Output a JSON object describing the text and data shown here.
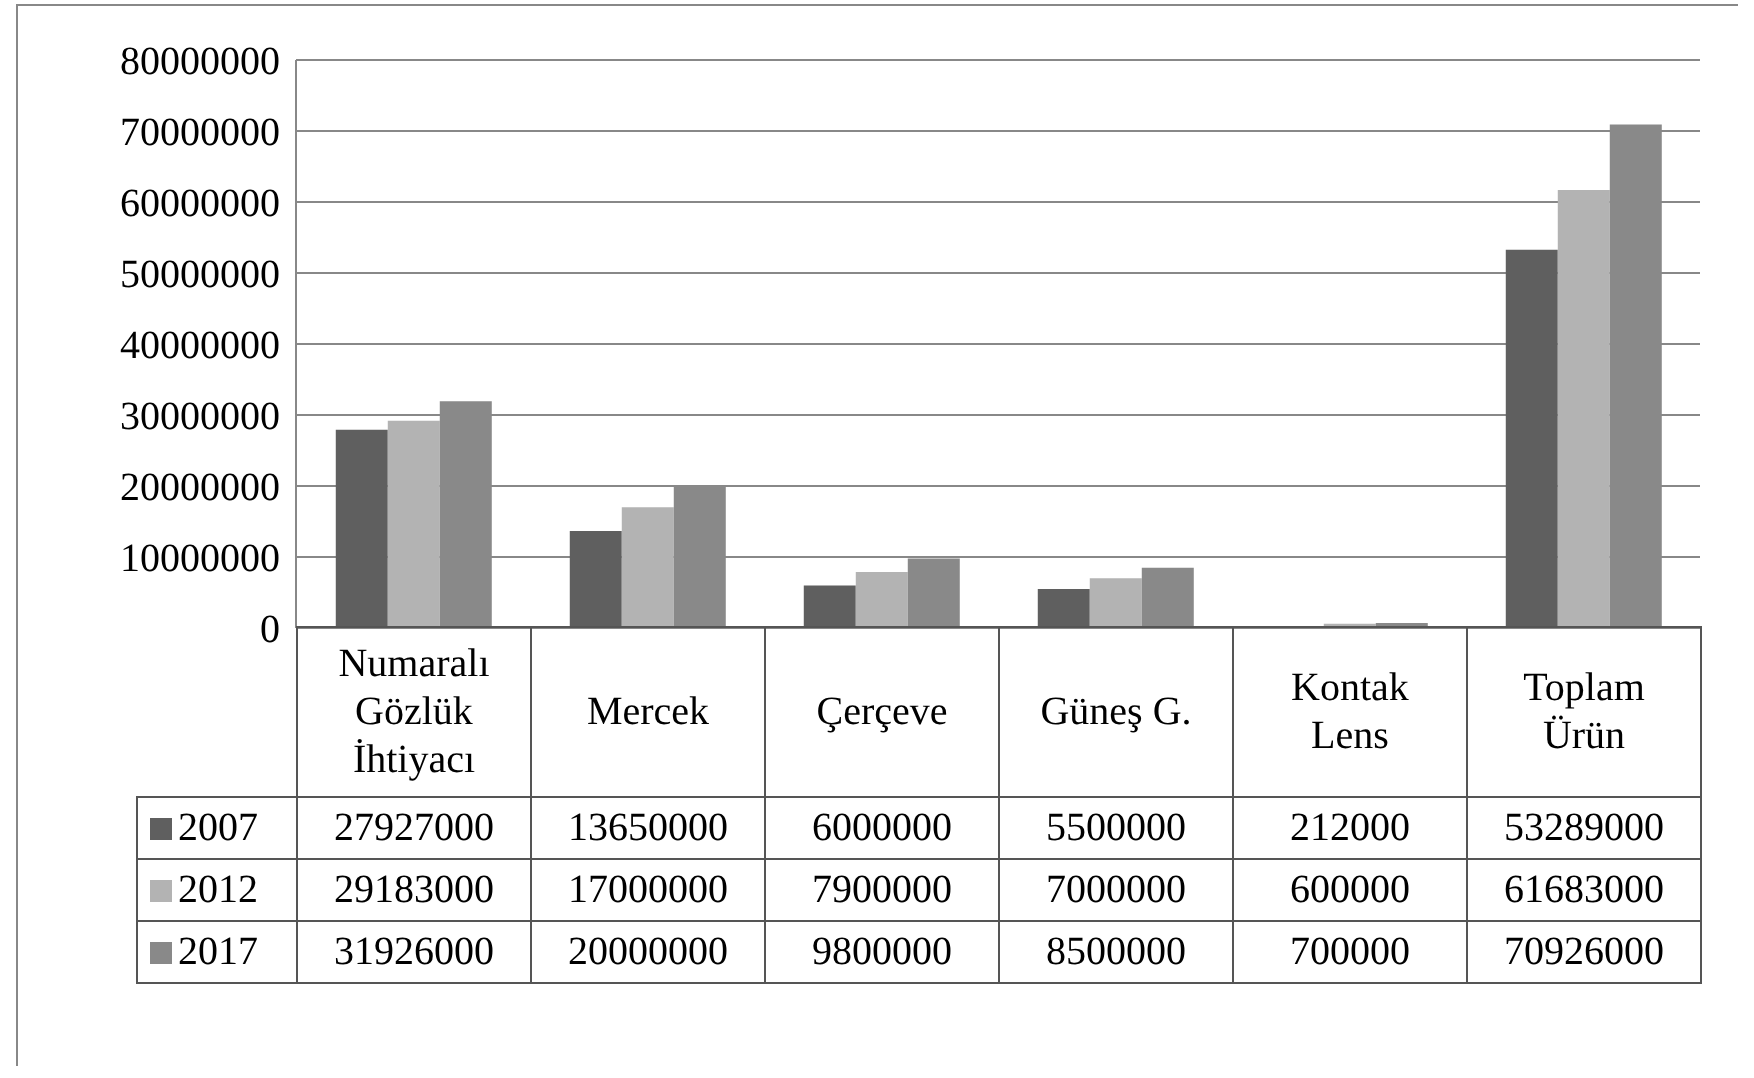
{
  "chart_data": {
    "type": "bar",
    "categories": [
      "Numaralı Gözlük İhtiyacı",
      "Mercek",
      "Çerçeve",
      "Güneş G.",
      "Kontak Lens",
      "Toplam Ürün"
    ],
    "series": [
      {
        "name": "2007",
        "color": "#5f5f5f",
        "values": [
          27927000,
          13650000,
          6000000,
          5500000,
          212000,
          53289000
        ]
      },
      {
        "name": "2012",
        "color": "#b3b3b3",
        "values": [
          29183000,
          17000000,
          7900000,
          7000000,
          600000,
          61683000
        ]
      },
      {
        "name": "2017",
        "color": "#898989",
        "values": [
          31926000,
          20000000,
          9800000,
          8500000,
          700000,
          70926000
        ]
      }
    ],
    "ylim": [
      0,
      80000000
    ],
    "yticks": [
      0,
      10000000,
      20000000,
      30000000,
      40000000,
      50000000,
      60000000,
      70000000,
      80000000
    ],
    "grid": "y",
    "legend": "bottom",
    "data_labels": true
  }
}
